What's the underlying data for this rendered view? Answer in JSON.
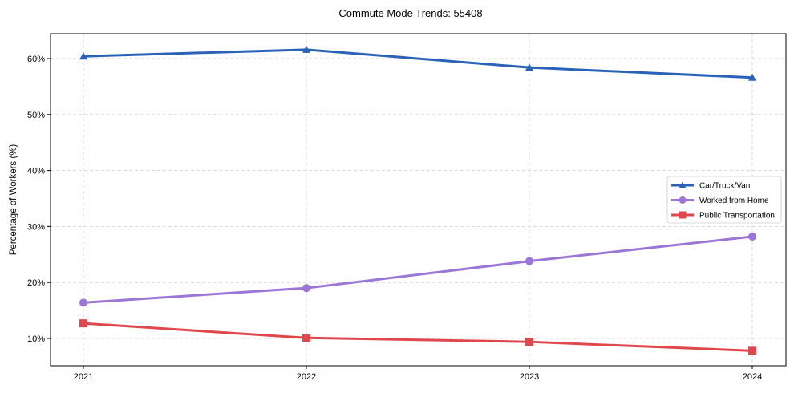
{
  "chart_data": {
    "type": "line",
    "title": "Commute Mode Trends: 55408",
    "xlabel": "",
    "ylabel": "Percentage of Workers (%)",
    "x": [
      "2021",
      "2022",
      "2023",
      "2024"
    ],
    "yticks": [
      "10%",
      "20%",
      "30%",
      "40%",
      "50%",
      "60%"
    ],
    "ytick_values": [
      10,
      20,
      30,
      40,
      50,
      60
    ],
    "ylim": [
      5.0,
      64.3
    ],
    "grid": true,
    "legend_position": "center right",
    "series": [
      {
        "name": "Car/Truck/Van",
        "color": "#2a62b8",
        "marker": "triangle",
        "values": [
          60.4,
          61.6,
          58.4,
          56.6
        ]
      },
      {
        "name": "Worked from Home",
        "color": "#9b76d6",
        "marker": "circle",
        "values": [
          16.4,
          19.0,
          23.8,
          28.2
        ]
      },
      {
        "name": "Public Transportation",
        "color": "#e0474c",
        "marker": "square",
        "values": [
          12.7,
          10.1,
          9.4,
          7.8
        ]
      }
    ]
  }
}
